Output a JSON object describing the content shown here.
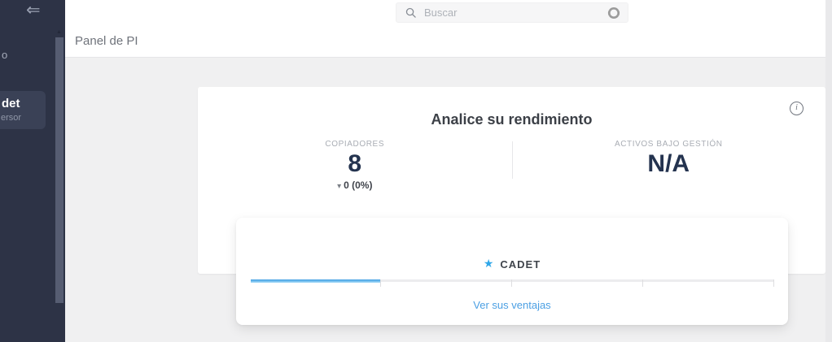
{
  "icons": {
    "collapse": "⇐",
    "scroll_up": "▲",
    "star": "★",
    "delta_down": "▾",
    "info": "i"
  },
  "colors": {
    "sidebar_bg": "#2d3346",
    "sidebar_active_bg": "#3a4156",
    "accent_blue": "#2fa7e9",
    "link_blue": "#4b9fe3",
    "stat_navy": "#24334f",
    "content_bg": "#f0f0f1"
  },
  "sidebar": {
    "partial_item_label": "o",
    "active_item": {
      "title_fragment": "det",
      "subtitle_fragment": "ersor"
    }
  },
  "header": {
    "search": {
      "placeholder": "Buscar"
    }
  },
  "breadcrumb": {
    "title": "Panel de PI"
  },
  "performance_card": {
    "title": "Analice su rendimiento",
    "stats": [
      {
        "label": "COPIADORES",
        "value": "8",
        "delta_text": "0 (0%)",
        "delta_direction": "down"
      },
      {
        "label": "ACTIVOS BAJO GESTIÓN",
        "value": "N/A"
      }
    ]
  },
  "tier_card": {
    "name": "CADET",
    "progress_percent": 25,
    "segments": 4,
    "link_label": "Ver sus ventajas"
  }
}
